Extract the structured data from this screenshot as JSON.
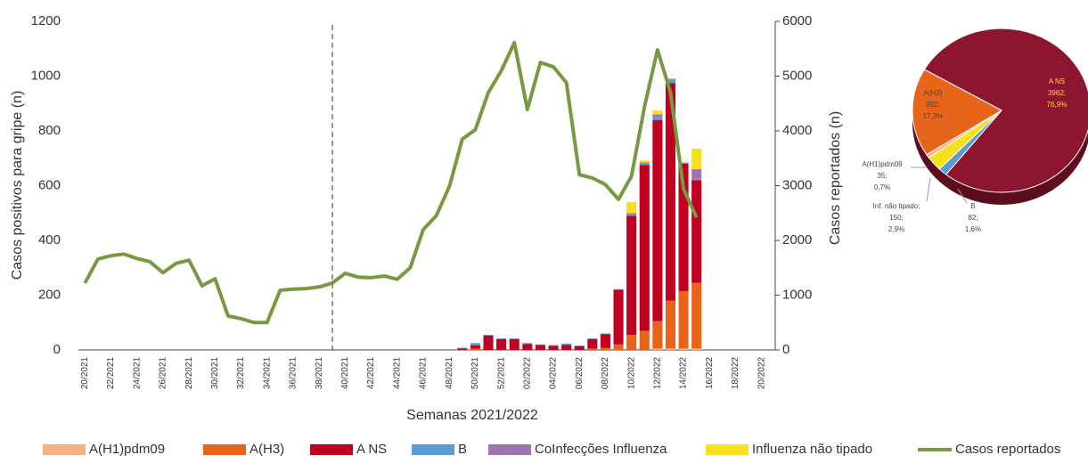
{
  "chart_data": [
    {
      "type": "bar",
      "stacked": true,
      "x_label": "Semanas 2021/2022",
      "y_label": "Casos positivos para gripe (n)",
      "y2_label": "Casos reportados (n)",
      "categories": [
        "20/2021",
        null,
        "22/2021",
        null,
        "24/2021",
        null,
        "26/2021",
        null,
        "28/2021",
        null,
        "30/2021",
        null,
        "32/2021",
        null,
        "34/2021",
        null,
        "36/2021",
        null,
        "38/2021",
        null,
        "40/2021",
        null,
        "42/2021",
        null,
        "44/2021",
        null,
        "46/2021",
        null,
        "48/2021",
        null,
        "50/2021",
        null,
        "52/2021",
        null,
        "02/2022",
        null,
        "04/2022",
        null,
        "06/2022",
        null,
        "08/2022",
        null,
        "10/2022",
        null,
        "12/2022",
        null,
        "14/2022",
        null,
        "16/2022",
        null,
        "18/2022",
        null,
        "20/2022"
      ],
      "ylim": [
        0,
        1200
      ],
      "yticks": [
        0,
        200,
        400,
        600,
        800,
        1000,
        1200
      ],
      "y2lim": [
        0,
        6000
      ],
      "y2ticks": [
        0,
        1000,
        2000,
        3000,
        4000,
        5000,
        6000
      ],
      "legend": "bottom",
      "series": [
        {
          "name": "A(H1)pdm09",
          "color": "#f4b183",
          "values": [
            0,
            0,
            0,
            0,
            0,
            0,
            0,
            0,
            0,
            0,
            0,
            0,
            0,
            0,
            0,
            0,
            0,
            0,
            0,
            0,
            0,
            0,
            0,
            0,
            0,
            0,
            0,
            0,
            0,
            0,
            0,
            0,
            0,
            0,
            0,
            0,
            0,
            0,
            0,
            0,
            0,
            0,
            0,
            0,
            5,
            5,
            5,
            5,
            0,
            0,
            0,
            0,
            0
          ]
        },
        {
          "name": "A(H3)",
          "color": "#e8641b",
          "values": [
            0,
            0,
            0,
            0,
            0,
            0,
            0,
            0,
            0,
            0,
            0,
            0,
            0,
            0,
            0,
            0,
            0,
            0,
            0,
            0,
            0,
            0,
            0,
            0,
            0,
            0,
            0,
            0,
            0,
            0,
            5,
            0,
            0,
            0,
            0,
            0,
            0,
            0,
            0,
            5,
            8,
            20,
            55,
            70,
            100,
            175,
            210,
            240,
            0,
            0,
            0,
            0,
            0
          ]
        },
        {
          "name": "A NS",
          "color": "#c00020",
          "values": [
            0,
            0,
            0,
            0,
            0,
            0,
            0,
            0,
            0,
            0,
            0,
            0,
            0,
            0,
            0,
            0,
            0,
            0,
            0,
            0,
            0,
            0,
            0,
            0,
            0,
            0,
            0,
            0,
            0,
            5,
            12,
            52,
            40,
            40,
            22,
            18,
            15,
            18,
            14,
            35,
            50,
            200,
            435,
            605,
            735,
            795,
            465,
            375,
            0,
            0,
            0,
            0,
            0
          ]
        },
        {
          "name": "B",
          "color": "#5b9bd5",
          "values": [
            0,
            0,
            0,
            0,
            0,
            0,
            0,
            0,
            0,
            0,
            0,
            0,
            0,
            0,
            0,
            0,
            0,
            0,
            0,
            0,
            0,
            0,
            0,
            0,
            0,
            0,
            0,
            0,
            0,
            3,
            8,
            3,
            2,
            2,
            3,
            2,
            3,
            5,
            2,
            2,
            2,
            2,
            5,
            5,
            10,
            10,
            5,
            5,
            0,
            0,
            0,
            0,
            0
          ]
        },
        {
          "name": "CoInfecções Influenza",
          "color": "#a074b0",
          "values": [
            0,
            0,
            0,
            0,
            0,
            0,
            0,
            0,
            0,
            0,
            0,
            0,
            0,
            0,
            0,
            0,
            0,
            0,
            0,
            0,
            0,
            0,
            0,
            0,
            0,
            0,
            0,
            0,
            0,
            0,
            0,
            0,
            0,
            0,
            0,
            0,
            0,
            0,
            0,
            0,
            0,
            0,
            5,
            5,
            10,
            5,
            0,
            35,
            0,
            0,
            0,
            0,
            0
          ]
        },
        {
          "name": "Influenza não tipado",
          "color": "#f7e11e",
          "values": [
            0,
            0,
            0,
            0,
            0,
            0,
            0,
            0,
            0,
            0,
            0,
            0,
            0,
            0,
            0,
            0,
            0,
            0,
            0,
            0,
            0,
            0,
            0,
            0,
            0,
            0,
            0,
            0,
            0,
            0,
            0,
            0,
            0,
            0,
            0,
            0,
            0,
            0,
            0,
            0,
            0,
            0,
            40,
            8,
            15,
            0,
            0,
            75,
            0,
            0,
            0,
            0,
            0
          ]
        },
        {
          "name": "Casos reportados",
          "color": "#77993f",
          "type": "line",
          "axis": "y2",
          "values": [
            1220,
            1660,
            1720,
            1750,
            1670,
            1610,
            1410,
            1580,
            1640,
            1170,
            1300,
            620,
            570,
            500,
            500,
            1090,
            1110,
            1120,
            1150,
            1220,
            1400,
            1330,
            1320,
            1350,
            1290,
            1500,
            2200,
            2450,
            2980,
            3850,
            4020,
            4700,
            5100,
            5610,
            4390,
            5250,
            5170,
            4880,
            3200,
            3140,
            3020,
            2750,
            3170,
            4440,
            5480,
            4700,
            2940,
            2420,
            null,
            null,
            null,
            null,
            null
          ]
        }
      ]
    },
    {
      "type": "pie",
      "categories": [
        "A NS",
        "B",
        "Inf. não tipado;",
        "A(H1)pdm09",
        "A(H3)"
      ],
      "values": [
        3962,
        82,
        150,
        35,
        892
      ],
      "value_labels": [
        "3962;",
        "82;",
        "150;",
        "35;",
        "892;"
      ],
      "percents": [
        76.9,
        1.6,
        2.9,
        0.7,
        17.3
      ],
      "percent_labels": [
        "76,9%",
        "1,6%",
        "2,9%",
        "0,7%",
        "17,3%"
      ],
      "colors": [
        "#8e1530",
        "#5b9bd5",
        "#f7e11e",
        "#f4b183",
        "#e8641b"
      ]
    }
  ]
}
